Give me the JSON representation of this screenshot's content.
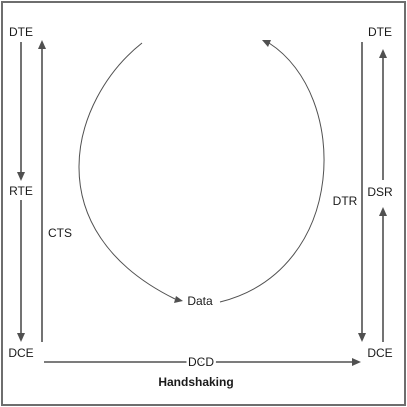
{
  "diagram": {
    "caption": "Handshaking",
    "nodes": {
      "dte_left": "DTE",
      "rte_left": "RTE",
      "dce_left": "DCE",
      "dte_right": "DTE",
      "dsr_right": "DSR",
      "dce_right": "DCE"
    },
    "edges": {
      "cts": "CTS",
      "dtr": "DTR",
      "dcd": "DCD",
      "data": "Data"
    },
    "colors": {
      "stroke": "#505050",
      "text": "#1a1a1a",
      "border": "#6e6e6e"
    }
  }
}
